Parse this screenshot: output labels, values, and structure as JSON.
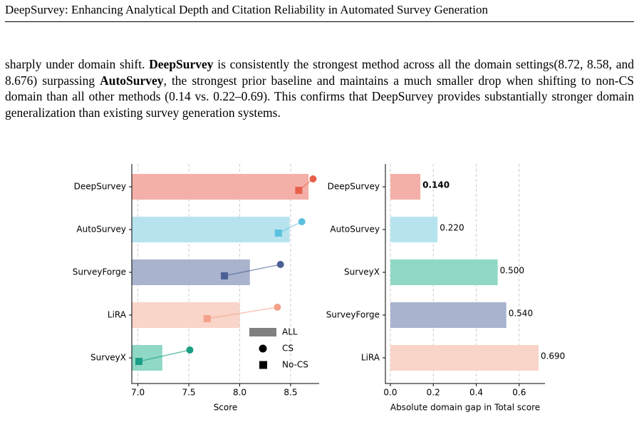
{
  "header": {
    "title": "DeepSurvey: Enhancing Analytical Depth and Citation Reliability in Automated Survey Generation"
  },
  "paragraph": [
    "sharply under domain shift. ",
    "DeepSurvey",
    " is consistently the strongest method across all the domain settings(8.72, 8.58, and 8.676) surpassing ",
    "AutoSurvey",
    ", the strongest prior baseline and maintains a much smaller drop when shifting to non-CS domain than all other methods (0.14 vs. 0.22–0.69). This confirms that DeepSurvey provides substantially stronger domain generalization than existing survey generation systems."
  ],
  "chart_data": [
    {
      "type": "bar",
      "orientation": "horizontal",
      "xlabel": "Score",
      "categories": [
        "DeepSurvey",
        "AutoSurvey",
        "SurveyForge",
        "LiRA",
        "SurveyX"
      ],
      "series": [
        {
          "name": "ALL",
          "marker": "bar",
          "color": "#808080",
          "colors": [
            "#f4b0a8",
            "#b7e3ee",
            "#a9b3cd",
            "#f9d4c8",
            "#8fd8c6"
          ],
          "values": [
            8.676,
            8.49,
            8.1,
            8.0,
            7.24
          ]
        },
        {
          "name": "CS",
          "marker": "circle",
          "color": "#000000",
          "colors": [
            "#e8604c",
            "#5bc0de",
            "#4a5f94",
            "#f4a08a",
            "#1a9e84"
          ],
          "values": [
            8.72,
            8.61,
            8.4,
            8.37,
            7.51
          ]
        },
        {
          "name": "No-CS",
          "marker": "square",
          "color": "#000000",
          "colors": [
            "#e8604c",
            "#5bc0de",
            "#4a5f94",
            "#f4a08a",
            "#1a9e84"
          ],
          "values": [
            8.58,
            8.38,
            7.85,
            7.68,
            7.01
          ]
        }
      ],
      "xlim": [
        6.94,
        8.78
      ],
      "xticks": [
        {
          "value": 7,
          "label": "7.0"
        },
        7.5,
        {
          "value": 8,
          "label": "8.0"
        },
        8.5
      ],
      "grid": true,
      "legend": "lower right"
    },
    {
      "type": "bar",
      "orientation": "horizontal",
      "xlabel": "Absolute domain gap in Total score",
      "categories": [
        "DeepSurvey",
        "AutoSurvey",
        "SurveyX",
        "SurveyForge",
        "LiRA"
      ],
      "series": [
        {
          "name": null,
          "marker": "bar",
          "colors": [
            "#f4b0a8",
            "#b7e3ee",
            "#8fd8c6",
            "#a9b3cd",
            "#f9d4c8"
          ],
          "values": [
            0.14,
            0.22,
            0.5,
            0.54,
            0.69
          ],
          "value_labels": [
            "0.140",
            "0.220",
            "0.500",
            "0.540",
            "0.690"
          ]
        }
      ],
      "xlim": [
        -0.023,
        0.72
      ],
      "xticks": [
        {
          "value": 0,
          "label": "0.0"
        },
        0.2,
        0.4,
        0.6
      ],
      "grid": true
    }
  ]
}
